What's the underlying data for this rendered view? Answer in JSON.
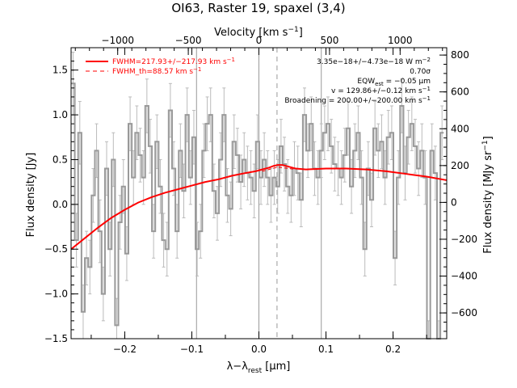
{
  "title": "OI63, Raster 19, spaxel (3,4)",
  "chart_data": {
    "type": "line",
    "title": "OI63, Raster 19, spaxel (3,4)",
    "xlabel": "λ−λ",
    "xlabel_sub": "rest",
    "xlabel_unit": " [μm]",
    "ylabel": "Flux density [Jy]",
    "top_axis_label": "Velocity [km s",
    "top_axis_label_sup": "−1",
    "top_axis_label_end": "]",
    "right_axis_label": "Flux density [MJy sr",
    "right_axis_label_sup": "−1",
    "right_axis_label_end": "]",
    "xlim": [
      -0.28,
      0.28
    ],
    "ylim": [
      -1.5,
      1.75
    ],
    "velocity_lim": [
      -1330,
      1330
    ],
    "right_lim": [
      -740,
      840
    ],
    "x_ticks": [
      {
        "value": -0.2,
        "label": "−0.2"
      },
      {
        "value": -0.1,
        "label": "−0.1"
      },
      {
        "value": 0.0,
        "label": "0.0"
      },
      {
        "value": 0.1,
        "label": "0.1"
      },
      {
        "value": 0.2,
        "label": "0.2"
      }
    ],
    "y_ticks": [
      {
        "value": -1.5,
        "label": "−1.5"
      },
      {
        "value": -1.0,
        "label": "−1.0"
      },
      {
        "value": -0.5,
        "label": "−0.5"
      },
      {
        "value": 0.0,
        "label": "0.0"
      },
      {
        "value": 0.5,
        "label": "0.5"
      },
      {
        "value": 1.0,
        "label": "1.0"
      },
      {
        "value": 1.5,
        "label": "1.5"
      }
    ],
    "top_ticks": [
      {
        "value": -1000,
        "label": "−1000"
      },
      {
        "value": -500,
        "label": "−500"
      },
      {
        "value": 0,
        "label": "0"
      },
      {
        "value": 500,
        "label": "500"
      },
      {
        "value": 1000,
        "label": "1000"
      }
    ],
    "right_ticks": [
      {
        "value": -600,
        "label": "−600"
      },
      {
        "value": -400,
        "label": "−400"
      },
      {
        "value": -200,
        "label": "−200"
      },
      {
        "value": 0,
        "label": "0"
      },
      {
        "value": 200,
        "label": "200"
      },
      {
        "value": 400,
        "label": "400"
      },
      {
        "value": 600,
        "label": "600"
      },
      {
        "value": 800,
        "label": "800"
      }
    ],
    "reference_lines": {
      "solid_x": [
        -0.093,
        0.0,
        0.093
      ],
      "dashed_x": 0.027
    },
    "series": [
      {
        "name": "data",
        "style": "step",
        "color": "#999999",
        "x": [
          -0.277,
          -0.272,
          -0.267,
          -0.262,
          -0.257,
          -0.252,
          -0.247,
          -0.242,
          -0.237,
          -0.232,
          -0.227,
          -0.222,
          -0.217,
          -0.212,
          -0.207,
          -0.202,
          -0.197,
          -0.192,
          -0.187,
          -0.182,
          -0.177,
          -0.172,
          -0.167,
          -0.162,
          -0.157,
          -0.152,
          -0.147,
          -0.142,
          -0.137,
          -0.132,
          -0.127,
          -0.122,
          -0.117,
          -0.112,
          -0.107,
          -0.102,
          -0.097,
          -0.092,
          -0.087,
          -0.082,
          -0.077,
          -0.072,
          -0.067,
          -0.062,
          -0.057,
          -0.052,
          -0.047,
          -0.042,
          -0.037,
          -0.032,
          -0.027,
          -0.022,
          -0.017,
          -0.012,
          -0.007,
          -0.002,
          0.003,
          0.008,
          0.013,
          0.018,
          0.023,
          0.028,
          0.033,
          0.038,
          0.043,
          0.048,
          0.053,
          0.058,
          0.063,
          0.068,
          0.073,
          0.078,
          0.083,
          0.088,
          0.093,
          0.098,
          0.103,
          0.108,
          0.113,
          0.118,
          0.123,
          0.128,
          0.133,
          0.138,
          0.143,
          0.148,
          0.153,
          0.158,
          0.163,
          0.168,
          0.173,
          0.178,
          0.183,
          0.188,
          0.193,
          0.198,
          0.203,
          0.208,
          0.213,
          0.218,
          0.223,
          0.228,
          0.233,
          0.238,
          0.243,
          0.248,
          0.253,
          0.258,
          0.263,
          0.268,
          0.273
        ],
        "values": [
          1.35,
          -0.4,
          0.8,
          -1.2,
          -0.6,
          -0.7,
          0.1,
          0.6,
          -0.3,
          -1.0,
          0.4,
          -0.5,
          0.5,
          -1.35,
          -0.2,
          0.2,
          -0.55,
          0.9,
          0.3,
          0.8,
          0.55,
          0.3,
          1.1,
          0.65,
          -0.3,
          0.7,
          0.2,
          -0.4,
          -0.5,
          1.05,
          0.4,
          -0.3,
          0.6,
          0.15,
          1.0,
          0.3,
          0.75,
          -0.5,
          -0.3,
          0.6,
          0.9,
          1.0,
          0.15,
          -0.1,
          0.5,
          1.0,
          0.1,
          -0.05,
          0.7,
          0.55,
          0.25,
          0.5,
          0.35,
          0.3,
          0.15,
          0.7,
          0.3,
          0.5,
          0.3,
          0.1,
          0.3,
          0.2,
          0.65,
          0.45,
          0.2,
          0.1,
          0.4,
          0.35,
          0.05,
          1.0,
          0.6,
          0.9,
          0.4,
          0.3,
          0.6,
          0.8,
          0.9,
          0.65,
          0.45,
          0.4,
          0.3,
          0.55,
          0.85,
          0.2,
          0.6,
          0.8,
          0.3,
          -0.5,
          0.4,
          0.05,
          0.85,
          0.6,
          0.7,
          0.3,
          0.75,
          0.8,
          -0.6,
          0.3,
          1.1,
          0.35,
          0.75,
          0.9,
          0.65,
          0.4,
          0.6,
          0.3,
          -1.6,
          0.6,
          0.35,
          -1.6,
          0.8
        ],
        "errors": [
          0.35,
          0.3,
          0.35,
          0.3,
          0.3,
          0.3,
          0.3,
          0.3,
          0.35,
          0.3,
          0.3,
          0.3,
          0.3,
          0.3,
          0.3,
          0.3,
          0.3,
          0.3,
          0.3,
          0.3,
          0.3,
          0.3,
          0.3,
          0.3,
          0.3,
          0.3,
          0.3,
          0.3,
          0.3,
          0.3,
          0.3,
          0.3,
          0.3,
          0.3,
          0.3,
          0.3,
          0.3,
          0.3,
          0.3,
          0.3,
          0.3,
          0.3,
          0.3,
          0.3,
          0.3,
          0.3,
          0.3,
          0.3,
          0.3,
          0.3,
          0.3,
          0.3,
          0.3,
          0.3,
          0.3,
          0.3,
          0.3,
          0.3,
          0.3,
          0.3,
          0.3,
          0.3,
          0.3,
          0.3,
          0.3,
          0.3,
          0.3,
          0.3,
          0.3,
          0.3,
          0.3,
          0.3,
          0.3,
          0.3,
          0.3,
          0.3,
          0.3,
          0.3,
          0.3,
          0.3,
          0.3,
          0.3,
          0.3,
          0.3,
          0.3,
          0.3,
          0.3,
          0.3,
          0.3,
          0.3,
          0.3,
          0.3,
          0.3,
          0.3,
          0.3,
          0.3,
          0.3,
          0.3,
          0.3,
          0.3,
          0.3,
          0.3,
          0.3,
          0.3,
          0.3,
          0.3,
          0.3,
          0.3,
          0.3,
          0.3,
          0.3
        ]
      },
      {
        "name": "FWHM=217.93+/−217.93 km s",
        "name_sup": "−1",
        "style": "solid",
        "color": "#ff0000",
        "x": [
          -0.28,
          -0.26,
          -0.24,
          -0.22,
          -0.2,
          -0.18,
          -0.16,
          -0.14,
          -0.12,
          -0.1,
          -0.08,
          -0.06,
          -0.04,
          -0.02,
          -0.005,
          0.005,
          0.015,
          0.022,
          0.028,
          0.035,
          0.045,
          0.055,
          0.07,
          0.1,
          0.13,
          0.16,
          0.19,
          0.22,
          0.25,
          0.28
        ],
        "values": [
          -0.5,
          -0.38,
          -0.26,
          -0.15,
          -0.06,
          0.02,
          0.08,
          0.13,
          0.17,
          0.21,
          0.25,
          0.28,
          0.32,
          0.35,
          0.37,
          0.39,
          0.41,
          0.43,
          0.44,
          0.44,
          0.42,
          0.4,
          0.39,
          0.4,
          0.4,
          0.39,
          0.37,
          0.34,
          0.31,
          0.27
        ]
      },
      {
        "name": "FWHM_th=88.57 km s",
        "name_sup": "−1",
        "style": "dashed",
        "color": "#ff0000",
        "x": [
          0.005,
          0.015,
          0.025,
          0.03,
          0.035,
          0.045,
          0.055
        ],
        "values": [
          0.37,
          0.39,
          0.41,
          0.415,
          0.41,
          0.4,
          0.39
        ]
      }
    ],
    "annotations": [
      {
        "text": "3.35e−18+/−4.73e−18 W m",
        "sup": "−2"
      },
      {
        "text": "0.70σ",
        "sup": ""
      },
      {
        "text": "EQW",
        "sub": "est",
        "text_end": " = −0.05 μm"
      },
      {
        "text": "v = 129.86+/−0.12 km s",
        "sup": "−1"
      },
      {
        "text": "Broadening = 200.00+/−200.00 km s",
        "sup": "−1"
      }
    ]
  }
}
